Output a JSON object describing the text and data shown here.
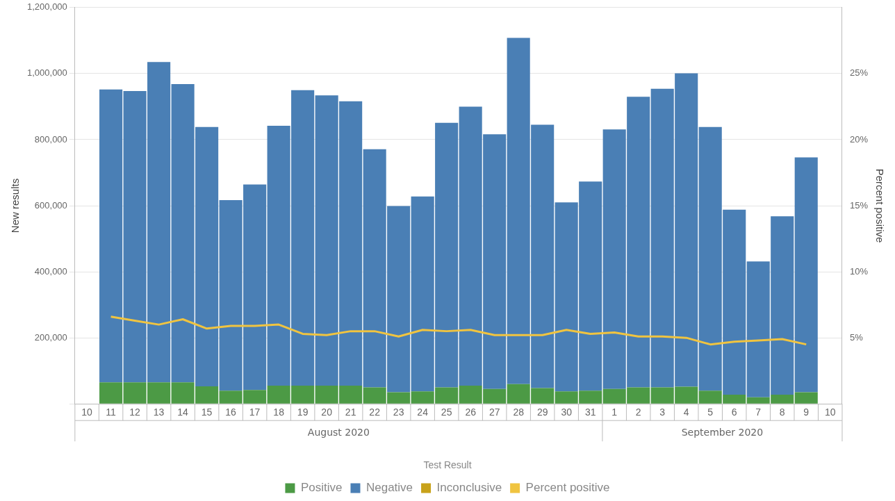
{
  "chart_data": {
    "type": "bar",
    "stacked": true,
    "xlabel": null,
    "ylabel": "New results",
    "y2label": "Percent positive",
    "legend_title": "Test Result",
    "legend": "bottom",
    "grid": "y",
    "categories": [
      "10",
      "11",
      "12",
      "13",
      "14",
      "15",
      "16",
      "17",
      "18",
      "19",
      "20",
      "21",
      "22",
      "23",
      "24",
      "25",
      "26",
      "27",
      "28",
      "29",
      "30",
      "31",
      "1",
      "2",
      "3",
      "4",
      "5",
      "6",
      "7",
      "8",
      "9",
      "10"
    ],
    "series": [
      {
        "name": "Positive",
        "color": "#4c9a45",
        "values": [
          null,
          65000,
          65000,
          65000,
          65000,
          53000,
          40000,
          42000,
          55000,
          55000,
          55000,
          55000,
          50000,
          35000,
          38000,
          50000,
          55000,
          45000,
          60000,
          48000,
          38000,
          40000,
          45000,
          50000,
          50000,
          52000,
          40000,
          28000,
          20000,
          28000,
          35000,
          null
        ]
      },
      {
        "name": "Negative",
        "color": "#4a7fb5",
        "values": [
          null,
          887000,
          882000,
          970000,
          903000,
          785000,
          577000,
          622000,
          787000,
          895000,
          879000,
          861000,
          721000,
          564000,
          590000,
          801000,
          845000,
          771000,
          1048000,
          797000,
          572000,
          633000,
          786000,
          880000,
          904000,
          949000,
          798000,
          560000,
          411000,
          540000,
          711000,
          null
        ]
      },
      {
        "name": "Inconclusive",
        "color": "#c8a21a",
        "values": [
          null,
          null,
          null,
          null,
          null,
          null,
          null,
          null,
          null,
          null,
          null,
          null,
          null,
          null,
          null,
          null,
          null,
          null,
          null,
          null,
          null,
          null,
          null,
          null,
          null,
          null,
          null,
          null,
          null,
          null,
          null,
          null
        ]
      },
      {
        "name": "Percent positive",
        "type": "line",
        "axis": "y2",
        "color": "#f0c440",
        "values": [
          null,
          6.6,
          6.3,
          6.0,
          6.4,
          5.7,
          5.9,
          5.9,
          6.0,
          5.3,
          5.2,
          5.5,
          5.5,
          5.1,
          5.6,
          5.5,
          5.6,
          5.2,
          5.2,
          5.2,
          5.6,
          5.3,
          5.4,
          5.1,
          5.1,
          5.0,
          4.5,
          4.7,
          4.8,
          4.9,
          4.5,
          null
        ]
      }
    ],
    "ylim": [
      0,
      1200000
    ],
    "yticks": [
      {
        "value": 0,
        "label": null
      },
      {
        "value": 200000,
        "label": "200,000"
      },
      {
        "value": 400000,
        "label": "400,000"
      },
      {
        "value": 600000,
        "label": "600,000"
      },
      {
        "value": 800000,
        "label": "800,000"
      },
      {
        "value": 1000000,
        "label": "1,000,000"
      },
      {
        "value": 1200000,
        "label": "1,200,000"
      }
    ],
    "y2lim": [
      0,
      30
    ],
    "y2ticks": [
      {
        "value": 5,
        "label": "5%"
      },
      {
        "value": 10,
        "label": "10%"
      },
      {
        "value": 15,
        "label": "15%"
      },
      {
        "value": 20,
        "label": "20%"
      },
      {
        "value": 25,
        "label": "25%"
      }
    ],
    "marker": "none",
    "annotations": [
      "August 2020",
      "September 2020"
    ]
  }
}
